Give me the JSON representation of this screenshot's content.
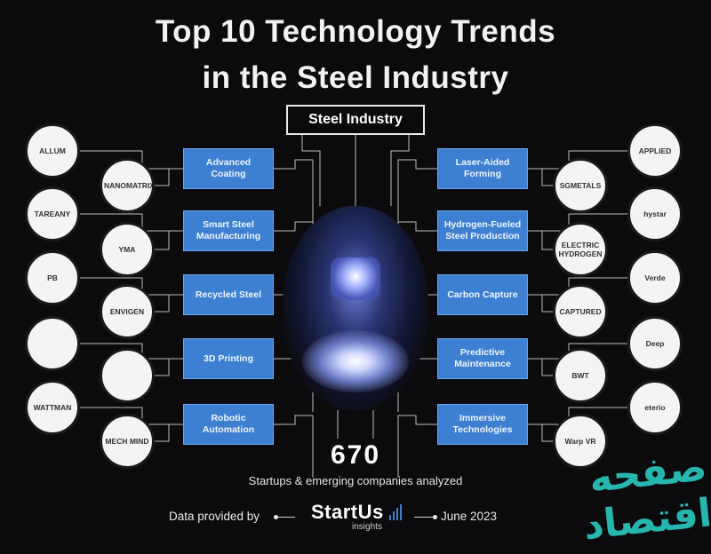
{
  "title": {
    "line1": "Top 10 Technology Trends",
    "line2": "in the Steel Industry"
  },
  "hub_label": "Steel Industry",
  "trends_left": [
    "Advanced Coating",
    "Smart Steel Manufacturing",
    "Recycled Steel",
    "3D Printing",
    "Robotic Automation"
  ],
  "trends_right": [
    "Laser-Aided Forming",
    "Hydrogen-Fueled Steel Production",
    "Carbon Capture",
    "Predictive Maintenance",
    "Immersive Technologies"
  ],
  "logos_left": [
    [
      "ALLUM",
      "NANOMATRIX"
    ],
    [
      "TAREANY",
      "YMA"
    ],
    [
      "PB",
      "ENVIGEN"
    ],
    [
      "",
      ""
    ],
    [
      "WATTMAN",
      "MECH MIND"
    ]
  ],
  "logos_right": [
    [
      "APPLIED",
      "SGMETALS"
    ],
    [
      "hystar",
      "ELECTRIC HYDROGEN"
    ],
    [
      "Verde",
      "CAPTURED"
    ],
    [
      "Deep",
      "BWT"
    ],
    [
      "eterio",
      "Warp VR"
    ]
  ],
  "count": "670",
  "count_label": "Startups & emerging companies analyzed",
  "footer": {
    "left": "Data provided by",
    "brand": "StartUs",
    "brand_sub": "insights",
    "right": "June 2023"
  },
  "watermark": "صفحه اقتصاد",
  "colors": {
    "background": "#0b0b0d",
    "trend_box": "#3d7fd1",
    "watermark": "#26b6ad"
  }
}
